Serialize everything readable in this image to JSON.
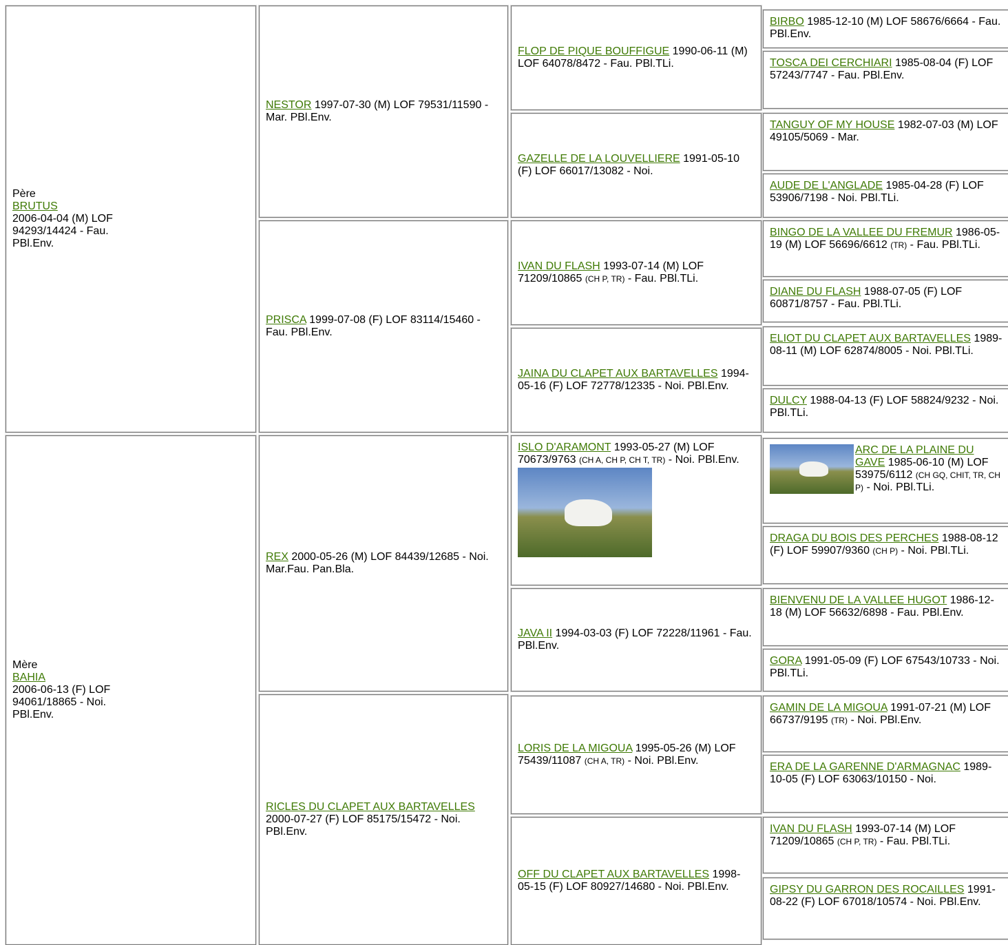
{
  "generations": [
    [
      {
        "role": "Père",
        "name": "BRUTUS",
        "info": "2006-04-04 (M) LOF 94293/14424 - Fau. PBl.Env."
      },
      {
        "role": "Mère",
        "name": "BAHIA",
        "info": "2006-06-13 (F) LOF 94061/18865 - Noi. PBl.Env."
      }
    ],
    [
      {
        "name": "NESTOR",
        "info": "1997-07-30 (M) LOF 79531/11590 - Mar. PBl.Env."
      },
      {
        "name": "PRISCA",
        "info": "1999-07-08 (F) LOF 83114/15460 - Fau. PBl.Env."
      },
      {
        "name": "REX",
        "info": "2000-05-26 (M) LOF 84439/12685 - Noi. Mar.Fau. Pan.Bla."
      },
      {
        "name": "RICLES DU CLAPET AUX BARTAVELLES",
        "info": "2000-07-27 (F) LOF 85175/15472 - Noi. PBl.Env."
      }
    ],
    [
      {
        "name": "FLOP DE PIQUE BOUFFIGUE",
        "info": "1990-06-11 (M) LOF 64078/8472 - Fau. PBl.TLi."
      },
      {
        "name": "GAZELLE DE LA LOUVELLIERE",
        "info": "1991-05-10 (F) LOF 66017/13082 - Noi."
      },
      {
        "name": "IVAN DU FLASH",
        "info": "1993-07-14 (M) LOF 71209/10865",
        "titles": "(CH P, TR)",
        "rest": "- Fau. PBl.TLi."
      },
      {
        "name": "JAINA DU CLAPET AUX BARTAVELLES",
        "info": "1994-05-16 (F) LOF 72778/12335 - Noi. PBl.Env."
      },
      {
        "name": "ISLO D'ARAMONT",
        "info": "1993-05-27 (M) LOF 70673/9763",
        "titles": "(CH A, CH P, CH T, TR)",
        "rest": "- Noi. PBl.Env."
      },
      {
        "name": "JAVA II",
        "info": "1994-03-03 (F) LOF 72228/11961 - Fau. PBl.Env."
      },
      {
        "name": "LORIS DE LA MIGOUA",
        "info": "1995-05-26 (M) LOF 75439/11087",
        "titles": "(CH A, TR)",
        "rest": "- Noi. PBl.Env."
      },
      {
        "name": "OFF DU CLAPET AUX BARTAVELLES",
        "info": "1998-05-15 (F) LOF 80927/14680 - Noi. PBl.Env."
      }
    ],
    [
      {
        "name": "BIRBO",
        "info": "1985-12-10 (M) LOF 58676/6664 - Fau. PBl.Env."
      },
      {
        "name": "TOSCA DEI CERCHIARI",
        "info": "1985-08-04 (F) LOF 57243/7747 - Fau. PBl.Env."
      },
      {
        "name": "TANGUY OF MY HOUSE",
        "info": "1982-07-03 (M) LOF 49105/5069 - Mar."
      },
      {
        "name": "AUDE DE L'ANGLADE",
        "info": "1985-04-28 (F) LOF 53906/7198 - Noi. PBl.TLi."
      },
      {
        "name": "BINGO DE LA VALLEE DU FREMUR",
        "info": "1986-05-19 (M) LOF 56696/6612",
        "titles": "(TR)",
        "rest": "- Fau. PBl.TLi."
      },
      {
        "name": "DIANE DU FLASH",
        "info": "1988-07-05 (F) LOF 60871/8757 - Fau. PBl.TLi."
      },
      {
        "name": "ELIOT DU CLAPET AUX BARTAVELLES",
        "info": "1989-08-11 (M) LOF 62874/8005 - Noi. PBl.TLi."
      },
      {
        "name": "DULCY",
        "info": "1988-04-13 (F) LOF 58824/9232 - Noi. PBl.TLi."
      },
      {
        "name": "ARC DE LA PLAINE DU GAVE",
        "info": "1985-06-10 (M) LOF 53975/6112",
        "titles": "(CH GQ, CHIT, TR, CH P)",
        "rest": "- Noi. PBl.TLi."
      },
      {
        "name": "DRAGA DU BOIS DES PERCHES",
        "info": "1988-08-12 (F) LOF 59907/9360",
        "titles": "(CH P)",
        "rest": "- Noi. PBl.TLi."
      },
      {
        "name": "BIENVENU DE LA VALLEE HUGOT",
        "info": "1986-12-18 (M) LOF 56632/6898 - Fau. PBl.Env."
      },
      {
        "name": "GORA",
        "info": "1991-05-09 (F) LOF 67543/10733 - Noi. PBl.TLi."
      },
      {
        "name": "GAMIN DE LA MIGOUA",
        "info": "1991-07-21 (M) LOF 66737/9195",
        "titles": "(TR)",
        "rest": "- Noi. PBl.Env."
      },
      {
        "name": "ERA DE LA GARENNE D'ARMAGNAC",
        "info": "1989-10-05 (F) LOF 63063/10150 - Noi."
      },
      {
        "name": "IVAN DU FLASH",
        "info": "1993-07-14 (M) LOF 71209/10865",
        "titles": "(CH P, TR)",
        "rest": "- Fau. PBl.TLi."
      },
      {
        "name": "GIPSY DU GARRON DES ROCAILLES",
        "info": "1991-08-22 (F) LOF 67018/10574 - Noi. PBl.Env."
      }
    ]
  ]
}
